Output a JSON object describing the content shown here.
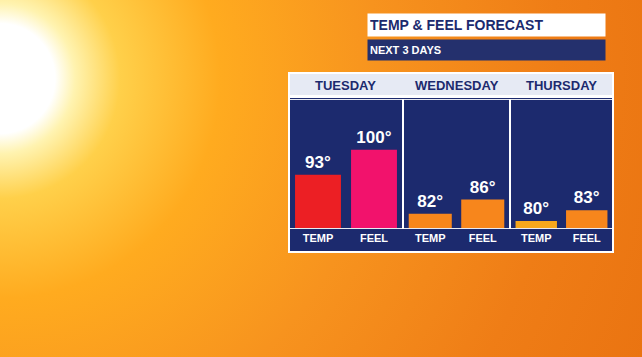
{
  "chart_data": {
    "type": "bar",
    "title": "TEMP & FEEL FORECAST",
    "subtitle": "NEXT 3 DAYS",
    "categories": [
      "TUESDAY",
      "WEDNESDAY",
      "THURSDAY"
    ],
    "series": [
      {
        "name": "TEMP",
        "colors": [
          "#ec1f24",
          "#f7861c",
          "#f6a71c"
        ],
        "values": [
          93,
          82,
          80
        ],
        "value_labels": [
          "93°",
          "82°",
          "80°"
        ]
      },
      {
        "name": "FEEL",
        "colors": [
          "#f2126c",
          "#f7861c",
          "#f7861c"
        ],
        "values": [
          100,
          86,
          83
        ],
        "value_labels": [
          "100°",
          "86°",
          "83°"
        ]
      }
    ],
    "ylim": [
      78,
      114
    ],
    "grid": false,
    "data_labels": true,
    "tick_labels": "x"
  }
}
